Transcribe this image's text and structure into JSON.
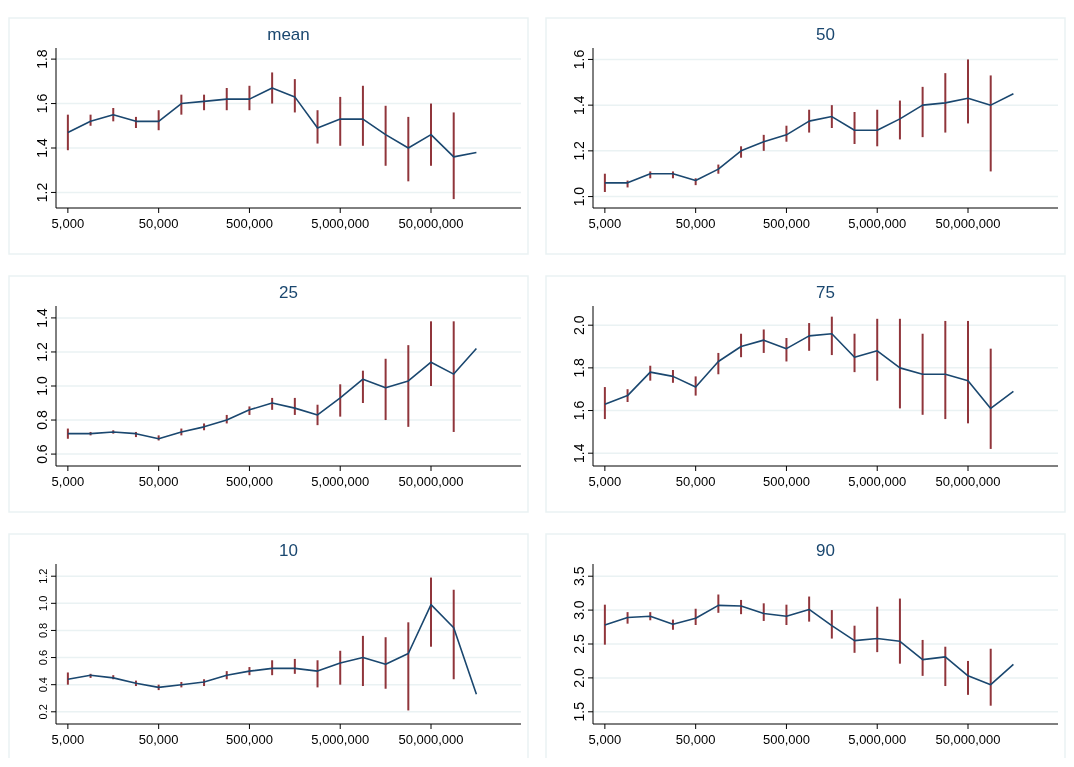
{
  "chart_data": [
    {
      "type": "line",
      "title": "mean",
      "x": [
        5000,
        8891,
        15811,
        28117,
        50000,
        88914,
        158114,
        281171,
        500000,
        889140,
        1581139,
        2811707,
        5000000,
        8891397,
        15811388,
        28117066,
        50000000,
        88913971,
        158113883
      ],
      "xlim": [
        3700,
        490000000
      ],
      "xticks": [
        {
          "value": 5000,
          "label": "5,000"
        },
        {
          "value": 50000,
          "label": "50,000"
        },
        {
          "value": 500000,
          "label": "500,000"
        },
        {
          "value": 5000000,
          "label": "5,000,000"
        },
        {
          "value": 50000000,
          "label": "50,000,000"
        }
      ],
      "ylim": [
        1.13,
        1.85
      ],
      "yticks": [
        1.2,
        1.4,
        1.6,
        1.8
      ],
      "grid": "y",
      "log": "x",
      "series": [
        {
          "color": "#1a476f",
          "values": [
            1.47,
            1.52,
            1.55,
            1.52,
            1.52,
            1.6,
            1.61,
            1.62,
            1.62,
            1.67,
            1.63,
            1.49,
            1.53,
            1.53,
            1.46,
            1.4,
            1.46,
            1.36,
            1.38
          ],
          "errors": [
            [
              1.39,
              1.55
            ],
            [
              1.5,
              1.55
            ],
            [
              1.52,
              1.58
            ],
            [
              1.49,
              1.54
            ],
            [
              1.48,
              1.57
            ],
            [
              1.55,
              1.64
            ],
            [
              1.57,
              1.64
            ],
            [
              1.57,
              1.67
            ],
            [
              1.57,
              1.68
            ],
            [
              1.6,
              1.74
            ],
            [
              1.56,
              1.71
            ],
            [
              1.42,
              1.57
            ],
            [
              1.41,
              1.63
            ],
            [
              1.41,
              1.68
            ],
            [
              1.32,
              1.59
            ],
            [
              1.25,
              1.54
            ],
            [
              1.32,
              1.6
            ],
            [
              1.17,
              1.56
            ],
            null
          ]
        }
      ]
    },
    {
      "type": "line",
      "title": "50",
      "x": [
        5000,
        8891,
        15811,
        28117,
        50000,
        88914,
        158114,
        281171,
        500000,
        889140,
        1581139,
        2811707,
        5000000,
        8891397,
        15811388,
        28117066,
        50000000,
        88913971,
        158113883
      ],
      "xlim": [
        3700,
        490000000
      ],
      "xticks": [
        {
          "value": 5000,
          "label": "5,000"
        },
        {
          "value": 50000,
          "label": "50,000"
        },
        {
          "value": 500000,
          "label": "500,000"
        },
        {
          "value": 5000000,
          "label": "5,000,000"
        },
        {
          "value": 50000000,
          "label": "50,000,000"
        }
      ],
      "ylim": [
        0.95,
        1.65
      ],
      "yticks": [
        {
          "value": 1,
          "label": "1.0"
        },
        1.2,
        1.4,
        1.6
      ],
      "grid": "y",
      "log": "x",
      "series": [
        {
          "color": "#1a476f",
          "values": [
            1.06,
            1.06,
            1.1,
            1.1,
            1.07,
            1.12,
            1.2,
            1.24,
            1.27,
            1.33,
            1.35,
            1.29,
            1.29,
            1.34,
            1.4,
            1.41,
            1.43,
            1.4,
            1.45
          ],
          "errors": [
            [
              1.02,
              1.1
            ],
            [
              1.04,
              1.07
            ],
            [
              1.08,
              1.11
            ],
            [
              1.08,
              1.11
            ],
            [
              1.05,
              1.08
            ],
            [
              1.1,
              1.14
            ],
            [
              1.17,
              1.22
            ],
            [
              1.2,
              1.27
            ],
            [
              1.24,
              1.31
            ],
            [
              1.28,
              1.38
            ],
            [
              1.3,
              1.4
            ],
            [
              1.23,
              1.37
            ],
            [
              1.22,
              1.38
            ],
            [
              1.25,
              1.42
            ],
            [
              1.26,
              1.48
            ],
            [
              1.28,
              1.54
            ],
            [
              1.32,
              1.6
            ],
            [
              1.11,
              1.53
            ],
            null
          ]
        }
      ]
    },
    {
      "type": "line",
      "title": "25",
      "x": [
        5000,
        8891,
        15811,
        28117,
        50000,
        88914,
        158114,
        281171,
        500000,
        889140,
        1581139,
        2811707,
        5000000,
        8891397,
        15811388,
        28117066,
        50000000,
        88913971,
        158113883
      ],
      "xlim": [
        3700,
        490000000
      ],
      "xticks": [
        {
          "value": 5000,
          "label": "5,000"
        },
        {
          "value": 50000,
          "label": "50,000"
        },
        {
          "value": 500000,
          "label": "500,000"
        },
        {
          "value": 5000000,
          "label": "5,000,000"
        },
        {
          "value": 50000000,
          "label": "50,000,000"
        }
      ],
      "ylim": [
        0.53,
        1.47
      ],
      "yticks": [
        0.6,
        0.8,
        {
          "value": 1,
          "label": "1.0"
        },
        1.2,
        1.4
      ],
      "grid": "y",
      "log": "x",
      "series": [
        {
          "color": "#1a476f",
          "values": [
            0.72,
            0.72,
            0.73,
            0.72,
            0.69,
            0.73,
            0.76,
            0.8,
            0.86,
            0.9,
            0.87,
            0.83,
            0.93,
            1.04,
            0.99,
            1.03,
            1.14,
            1.07,
            1.22
          ],
          "errors": [
            [
              0.69,
              0.75
            ],
            [
              0.71,
              0.73
            ],
            [
              0.72,
              0.74
            ],
            [
              0.7,
              0.73
            ],
            [
              0.68,
              0.71
            ],
            [
              0.71,
              0.75
            ],
            [
              0.74,
              0.78
            ],
            [
              0.78,
              0.83
            ],
            [
              0.83,
              0.88
            ],
            [
              0.86,
              0.93
            ],
            [
              0.83,
              0.93
            ],
            [
              0.77,
              0.89
            ],
            [
              0.82,
              1.01
            ],
            [
              0.9,
              1.09
            ],
            [
              0.8,
              1.16
            ],
            [
              0.76,
              1.24
            ],
            [
              1,
              1.38
            ],
            [
              0.73,
              1.38
            ],
            null
          ]
        }
      ]
    },
    {
      "type": "line",
      "title": "75",
      "x": [
        5000,
        8891,
        15811,
        28117,
        50000,
        88914,
        158114,
        281171,
        500000,
        889140,
        1581139,
        2811707,
        5000000,
        8891397,
        15811388,
        28117066,
        50000000,
        88913971,
        158113883
      ],
      "xlim": [
        3700,
        490000000
      ],
      "xticks": [
        {
          "value": 5000,
          "label": "5,000"
        },
        {
          "value": 50000,
          "label": "50,000"
        },
        {
          "value": 500000,
          "label": "500,000"
        },
        {
          "value": 5000000,
          "label": "5,000,000"
        },
        {
          "value": 50000000,
          "label": "50,000,000"
        }
      ],
      "ylim": [
        1.34,
        2.09
      ],
      "yticks": [
        1.4,
        1.6,
        1.8,
        {
          "value": 2,
          "label": "2.0"
        }
      ],
      "grid": "y",
      "log": "x",
      "series": [
        {
          "color": "#1a476f",
          "values": [
            1.63,
            1.67,
            1.78,
            1.76,
            1.71,
            1.83,
            1.9,
            1.93,
            1.89,
            1.95,
            1.96,
            1.85,
            1.88,
            1.8,
            1.77,
            1.77,
            1.74,
            1.61,
            1.69
          ],
          "errors": [
            [
              1.56,
              1.71
            ],
            [
              1.64,
              1.7
            ],
            [
              1.74,
              1.81
            ],
            [
              1.73,
              1.79
            ],
            [
              1.67,
              1.76
            ],
            [
              1.77,
              1.87
            ],
            [
              1.85,
              1.96
            ],
            [
              1.87,
              1.98
            ],
            [
              1.83,
              1.94
            ],
            [
              1.88,
              2.01
            ],
            [
              1.86,
              2.04
            ],
            [
              1.78,
              1.96
            ],
            [
              1.74,
              2.03
            ],
            [
              1.61,
              2.03
            ],
            [
              1.58,
              1.96
            ],
            [
              1.56,
              2.02
            ],
            [
              1.54,
              2.02
            ],
            [
              1.42,
              1.89
            ],
            null
          ]
        }
      ]
    },
    {
      "type": "line",
      "title": "10",
      "x": [
        5000,
        8891,
        15811,
        28117,
        50000,
        88914,
        158114,
        281171,
        500000,
        889140,
        1581139,
        2811707,
        5000000,
        8891397,
        15811388,
        28117066,
        50000000,
        88913971,
        158113883
      ],
      "xlim": [
        3700,
        490000000
      ],
      "xticks": [
        {
          "value": 5000,
          "label": "5,000"
        },
        {
          "value": 50000,
          "label": "50,000"
        },
        {
          "value": 500000,
          "label": "500,000"
        },
        {
          "value": 5000000,
          "label": "5,000,000"
        },
        {
          "value": 50000000,
          "label": "50,000,000"
        }
      ],
      "ylim": [
        0.11,
        1.29
      ],
      "yticks": [
        0.2,
        0.4,
        0.6,
        0.8,
        {
          "value": 1,
          "label": "1.0"
        },
        1.2
      ],
      "grid": "y",
      "log": "x",
      "series": [
        {
          "color": "#1a476f",
          "values": [
            0.44,
            0.47,
            0.45,
            0.41,
            0.38,
            0.4,
            0.42,
            0.47,
            0.5,
            0.52,
            0.52,
            0.5,
            0.56,
            0.6,
            0.55,
            0.63,
            0.99,
            0.82,
            0.33
          ],
          "errors": [
            [
              0.4,
              0.49
            ],
            [
              0.45,
              0.48
            ],
            [
              0.44,
              0.47
            ],
            [
              0.39,
              0.43
            ],
            [
              0.36,
              0.4
            ],
            [
              0.38,
              0.42
            ],
            [
              0.39,
              0.44
            ],
            [
              0.44,
              0.5
            ],
            [
              0.47,
              0.53
            ],
            [
              0.47,
              0.58
            ],
            [
              0.48,
              0.59
            ],
            [
              0.38,
              0.58
            ],
            [
              0.4,
              0.65
            ],
            [
              0.39,
              0.76
            ],
            [
              0.37,
              0.75
            ],
            [
              0.21,
              0.86
            ],
            [
              0.68,
              1.19
            ],
            [
              0.44,
              1.1
            ],
            null
          ]
        }
      ]
    },
    {
      "type": "line",
      "title": "90",
      "x": [
        5000,
        8891,
        15811,
        28117,
        50000,
        88914,
        158114,
        281171,
        500000,
        889140,
        1581139,
        2811707,
        5000000,
        8891397,
        15811388,
        28117066,
        50000000,
        88913971,
        158113883
      ],
      "xlim": [
        3700,
        490000000
      ],
      "xticks": [
        {
          "value": 5000,
          "label": "5,000"
        },
        {
          "value": 50000,
          "label": "50,000"
        },
        {
          "value": 500000,
          "label": "500,000"
        },
        {
          "value": 5000000,
          "label": "5,000,000"
        },
        {
          "value": 50000000,
          "label": "50,000,000"
        }
      ],
      "ylim": [
        1.32,
        3.68
      ],
      "yticks": [
        1.5,
        {
          "value": 2,
          "label": "2.0"
        },
        2.5,
        {
          "value": 3,
          "label": "3.0"
        },
        3.5
      ],
      "grid": "y",
      "log": "x",
      "series": [
        {
          "color": "#1a476f",
          "values": [
            2.78,
            2.89,
            2.91,
            2.79,
            2.88,
            3.07,
            3.06,
            2.95,
            2.91,
            3.01,
            2.77,
            2.55,
            2.58,
            2.54,
            2.27,
            2.31,
            2.03,
            1.9,
            2.2
          ],
          "errors": [
            [
              2.49,
              3.08
            ],
            [
              2.8,
              2.97
            ],
            [
              2.85,
              2.97
            ],
            [
              2.71,
              2.86
            ],
            [
              2.78,
              3.02
            ],
            [
              2.96,
              3.23
            ],
            [
              2.94,
              3.15
            ],
            [
              2.84,
              3.1
            ],
            [
              2.78,
              3.08
            ],
            [
              2.83,
              3.2
            ],
            [
              2.58,
              3
            ],
            [
              2.37,
              2.77
            ],
            [
              2.38,
              3.05
            ],
            [
              2.21,
              3.17
            ],
            [
              2.03,
              2.56
            ],
            [
              1.88,
              2.46
            ],
            [
              1.75,
              2.25
            ],
            [
              1.59,
              2.43
            ],
            null
          ]
        }
      ]
    }
  ]
}
